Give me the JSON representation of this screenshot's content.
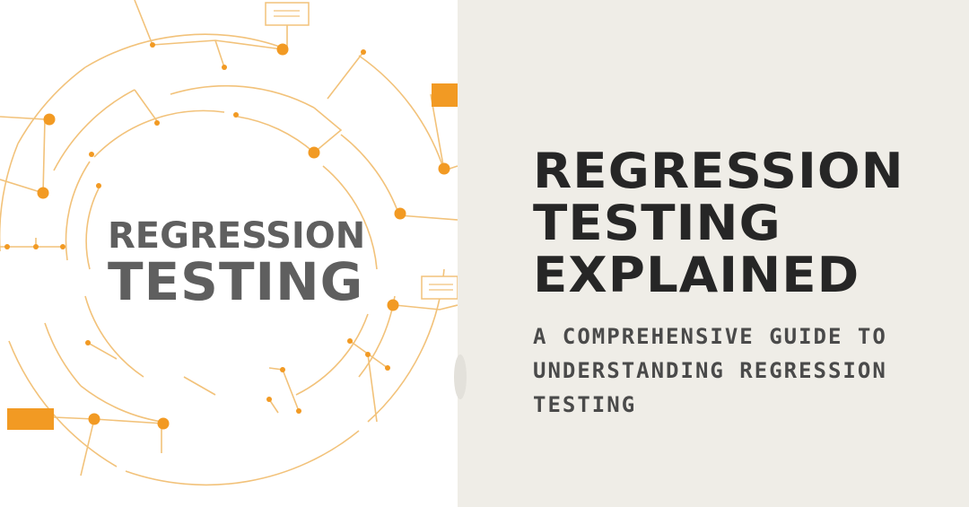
{
  "illustration": {
    "line1": "REGRESSION",
    "line2": "TESTING",
    "accent_color": "#f29a23",
    "line_color": "#f2c27a",
    "box_color": "#f7ead5"
  },
  "headline": {
    "line1": "REGRESSION",
    "line2": "TESTING",
    "line3": "EXPLAINED"
  },
  "subtitle": "A COMPREHENSIVE GUIDE TO UNDERSTANDING REGRESSION TESTING",
  "colors": {
    "panel_background": "#efede7",
    "headline_text": "#262626",
    "subtitle_text": "#4a4a4a",
    "illustration_text": "#5f5f5f"
  }
}
